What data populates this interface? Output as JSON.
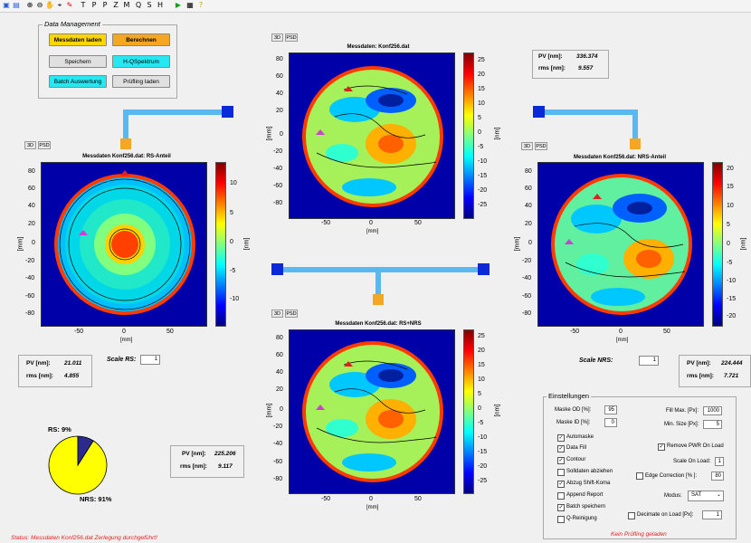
{
  "toolbar": {
    "icons": [
      "save-icon",
      "save-as-icon",
      "zoom-in-icon",
      "zoom-out-icon",
      "pan-icon",
      "data-cursor-icon",
      "T",
      "P",
      "P",
      "Z",
      "M",
      "Q",
      "S",
      "H",
      "run-icon",
      "snapshot-icon",
      "help-icon"
    ],
    "letters": [
      "T",
      "P",
      "P",
      "Z",
      "M",
      "Q",
      "S",
      "H"
    ]
  },
  "data_management": {
    "title": "Data Management",
    "messdaten_laden": "Messdaten laden",
    "berechnen": "Berechnen",
    "speichern": "Speichern",
    "h_qspektrum": "H-QSpektrum",
    "batch": "Batch Auswertung",
    "pruefling": "Prüfling laden"
  },
  "view_buttons": {
    "b3d": "3D",
    "psd": "PSD"
  },
  "plot_top": {
    "title": "Messdaten: Konf256.dat",
    "xlabel": "[mm]",
    "ylabel": "[mm]",
    "cbar_label": "[nm]",
    "xticks": [
      "-50",
      "0",
      "50"
    ],
    "yticks": [
      "80",
      "60",
      "40",
      "20",
      "0",
      "-20",
      "-40",
      "-60",
      "-80"
    ],
    "cticks": [
      "25",
      "20",
      "15",
      "10",
      "5",
      "0",
      "-5",
      "-10",
      "-15",
      "-20",
      "-25"
    ]
  },
  "plot_left": {
    "title": "Messdaten Konf256.dat: RS-Anteil",
    "xlabel": "[mm]",
    "ylabel": "[mm]",
    "cbar_label": "[nm]",
    "xticks": [
      "-50",
      "0",
      "50"
    ],
    "yticks": [
      "80",
      "60",
      "40",
      "20",
      "0",
      "-20",
      "-40",
      "-60",
      "-80"
    ],
    "cticks": [
      "10",
      "5",
      "0",
      "-5",
      "-10"
    ]
  },
  "plot_right": {
    "title": "Messdaten Konf256.dat: NRS-Anteil",
    "xlabel": "[mm]",
    "ylabel": "[mm]",
    "cbar_label": "[nm]",
    "xticks": [
      "-50",
      "0",
      "50"
    ],
    "yticks": [
      "80",
      "60",
      "40",
      "20",
      "0",
      "-20",
      "-40",
      "-60",
      "-80"
    ],
    "cticks": [
      "20",
      "15",
      "10",
      "5",
      "0",
      "-5",
      "-10",
      "-15",
      "-20"
    ]
  },
  "plot_bottom": {
    "title": "Messdaten Konf256.dat: RS+NRS",
    "xlabel": "[mm]",
    "ylabel": "[mm]",
    "cbar_label": "[nm]",
    "xticks": [
      "-50",
      "0",
      "50"
    ],
    "yticks": [
      "80",
      "60",
      "40",
      "20",
      "0",
      "-20",
      "-40",
      "-60",
      "-80"
    ],
    "cticks": [
      "25",
      "20",
      "15",
      "10",
      "5",
      "0",
      "-5",
      "-10",
      "-15",
      "-20",
      "-25"
    ]
  },
  "stats_top": {
    "pv_label": "PV [nm]:",
    "pv": "336.374",
    "rms_label": "rms [nm]:",
    "rms": "9.557"
  },
  "stats_left": {
    "pv_label": "PV [nm]:",
    "pv": "21.011",
    "rms_label": "rms [nm]:",
    "rms": "4.855"
  },
  "stats_right": {
    "pv_label": "PV [nm]:",
    "pv": "224.444",
    "rms_label": "rms [nm]:",
    "rms": "7.721"
  },
  "stats_bottom": {
    "pv_label": "PV [nm]:",
    "pv": "225.206",
    "rms_label": "rms [nm]:",
    "rms": "9.117"
  },
  "scale_rs": {
    "label": "Scale RS:",
    "value": "1"
  },
  "scale_nrs": {
    "label": "Scale NRS:",
    "value": "1"
  },
  "pie": {
    "rs_label": "RS: 9%",
    "nrs_label": "NRS: 91%",
    "rs_fraction": 0.09,
    "rs_color": "#2b2b8c",
    "nrs_color": "#ffff00"
  },
  "settings": {
    "title": "Einstellungen",
    "maske_od_label": "Maske OD [%]:",
    "maske_od": "95",
    "maske_id_label": "Maske ID [%]:",
    "maske_id": "0",
    "fill_max_label": "Fill Max. [Px]:",
    "fill_max": "1000",
    "min_size_label": "Min. Size [Px]:",
    "min_size": "5",
    "remove_pwr": "Remove PWR On Load",
    "scale_on_load_label": "Scale On Load:",
    "scale_on_load": "1",
    "edge_corr_label": "Edge Correction [% ]:",
    "edge_corr": "80",
    "modus_label": "Modus:",
    "modus": "SAT",
    "decimate_label": "Decimate on Load [Px]:",
    "decimate": "1",
    "checks": [
      {
        "label": "Automaske",
        "checked": true
      },
      {
        "label": "Data Fill",
        "checked": true
      },
      {
        "label": "Contour",
        "checked": true
      },
      {
        "label": "Solldaten abziehen",
        "checked": false
      },
      {
        "label": "Abzug Shift-Koma",
        "checked": true
      },
      {
        "label": "Append Report",
        "checked": false
      },
      {
        "label": "Batch speichern",
        "checked": true
      },
      {
        "label": "Q-Reinigung",
        "checked": false
      }
    ],
    "kein_pruefling": "Kein Prüfling geladen"
  },
  "status": "Status: Messdaten  Konf256.dat  Zerlegung durchgeführt!"
}
